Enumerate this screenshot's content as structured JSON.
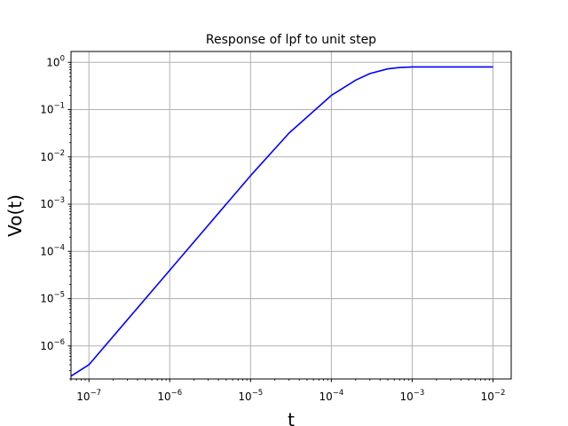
{
  "chart_data": {
    "type": "line",
    "title": "Response of lpf to unit step",
    "xlabel": "t",
    "ylabel": "Vo(t)",
    "xscale": "log",
    "yscale": "log",
    "xlim": [
      6e-08,
      0.0168
    ],
    "ylim": [
      2e-07,
      1.7
    ],
    "grid": true,
    "x_ticks": [
      {
        "base": "10",
        "exp": "−7",
        "value": 1e-07
      },
      {
        "base": "10",
        "exp": "−6",
        "value": 1e-06
      },
      {
        "base": "10",
        "exp": "−5",
        "value": 1e-05
      },
      {
        "base": "10",
        "exp": "−4",
        "value": 0.0001
      },
      {
        "base": "10",
        "exp": "−3",
        "value": 0.001
      },
      {
        "base": "10",
        "exp": "−2",
        "value": 0.01
      }
    ],
    "y_ticks": [
      {
        "base": "10",
        "exp": "0",
        "value": 1
      },
      {
        "base": "10",
        "exp": "−1",
        "value": 0.1
      },
      {
        "base": "10",
        "exp": "−2",
        "value": 0.01
      },
      {
        "base": "10",
        "exp": "−3",
        "value": 0.001
      },
      {
        "base": "10",
        "exp": "−4",
        "value": 0.0001
      },
      {
        "base": "10",
        "exp": "−5",
        "value": 1e-05
      },
      {
        "base": "10",
        "exp": "−6",
        "value": 1e-06
      }
    ],
    "series": [
      {
        "color": "#0000ff",
        "x": [
          6e-08,
          1e-07,
          1e-06,
          1e-05,
          3e-05,
          0.0001,
          0.0002,
          0.0003,
          0.0005,
          0.0007,
          0.001,
          0.002,
          0.005,
          0.01
        ],
        "y": [
          2.3e-07,
          4e-07,
          4e-05,
          0.004,
          0.032,
          0.2,
          0.42,
          0.58,
          0.73,
          0.78,
          0.8,
          0.8,
          0.8,
          0.8
        ]
      }
    ]
  }
}
